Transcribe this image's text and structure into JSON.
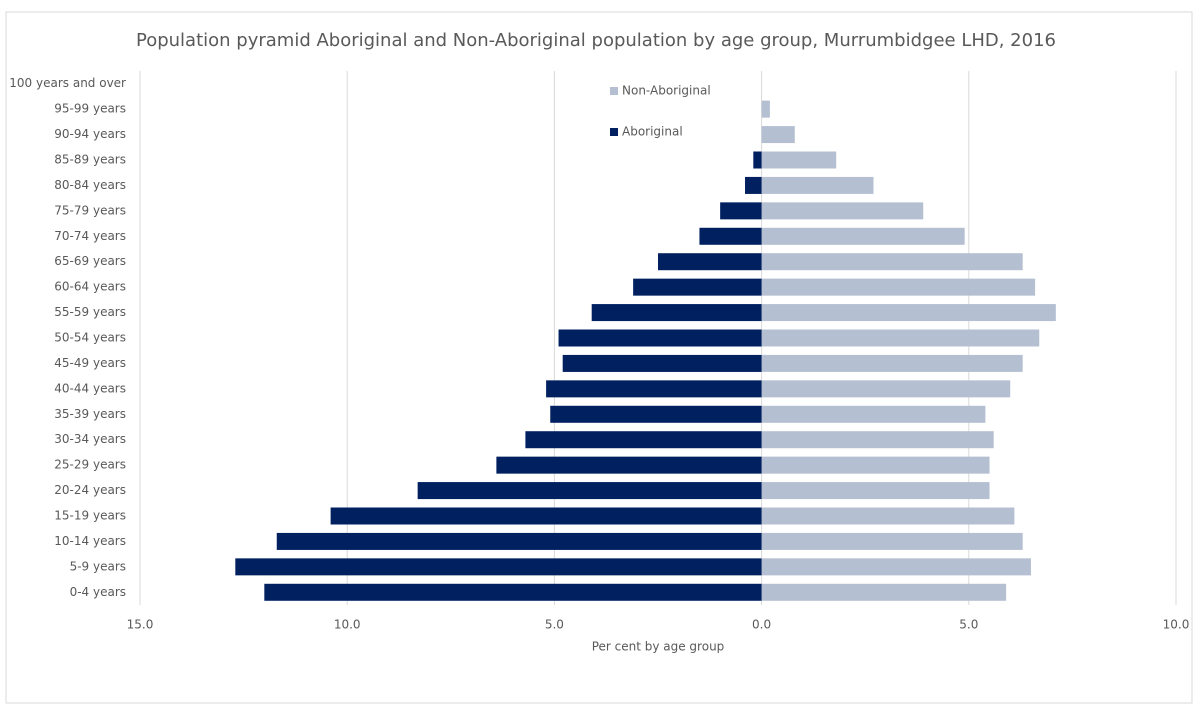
{
  "chart_data": {
    "type": "bar",
    "orientation": "horizontal",
    "title": "Population pyramid Aboriginal and Non-Aboriginal population by age group, Murrumbidgee LHD, 2016",
    "x_label": "Per cent by age group",
    "categories": [
      "100 years and over",
      "95-99 years",
      "90-94 years",
      "85-89 years",
      "80-84 years",
      "75-79 years",
      "70-74 years",
      "65-69 years",
      "60-64 years",
      "55-59 years",
      "50-54 years",
      "45-49 years",
      "40-44 years",
      "35-39 years",
      "30-34 years",
      "25-29 years",
      "20-24 years",
      "15-19 years",
      "10-14 years",
      "5-9 years",
      "0-4 years"
    ],
    "series": [
      {
        "name": "Non-Aboriginal",
        "color": "#b4bfd1",
        "values": [
          0,
          0.2,
          0.8,
          1.8,
          2.7,
          3.9,
          4.9,
          6.3,
          6.6,
          7.1,
          6.7,
          6.3,
          6.0,
          5.4,
          5.6,
          5.5,
          5.5,
          6.1,
          6.3,
          6.5,
          5.9
        ]
      },
      {
        "name": "Aboriginal",
        "color": "#002060",
        "values": [
          0,
          0,
          0,
          -0.2,
          -0.4,
          -1.0,
          -1.5,
          -2.5,
          -3.1,
          -4.1,
          -4.9,
          -4.8,
          -5.2,
          -5.1,
          -5.7,
          -6.4,
          -8.3,
          -10.4,
          -11.7,
          -12.7,
          -12.0
        ]
      }
    ],
    "xlim": [
      -15,
      10
    ],
    "xticks": [
      {
        "value": -15,
        "label": "15.0"
      },
      {
        "value": -10,
        "label": "10.0"
      },
      {
        "value": -5,
        "label": "5.0"
      },
      {
        "value": 0,
        "label": "0.0"
      },
      {
        "value": 5,
        "label": "5.0"
      },
      {
        "value": 10,
        "label": "10.0"
      }
    ],
    "grid": true,
    "legend": "top"
  }
}
